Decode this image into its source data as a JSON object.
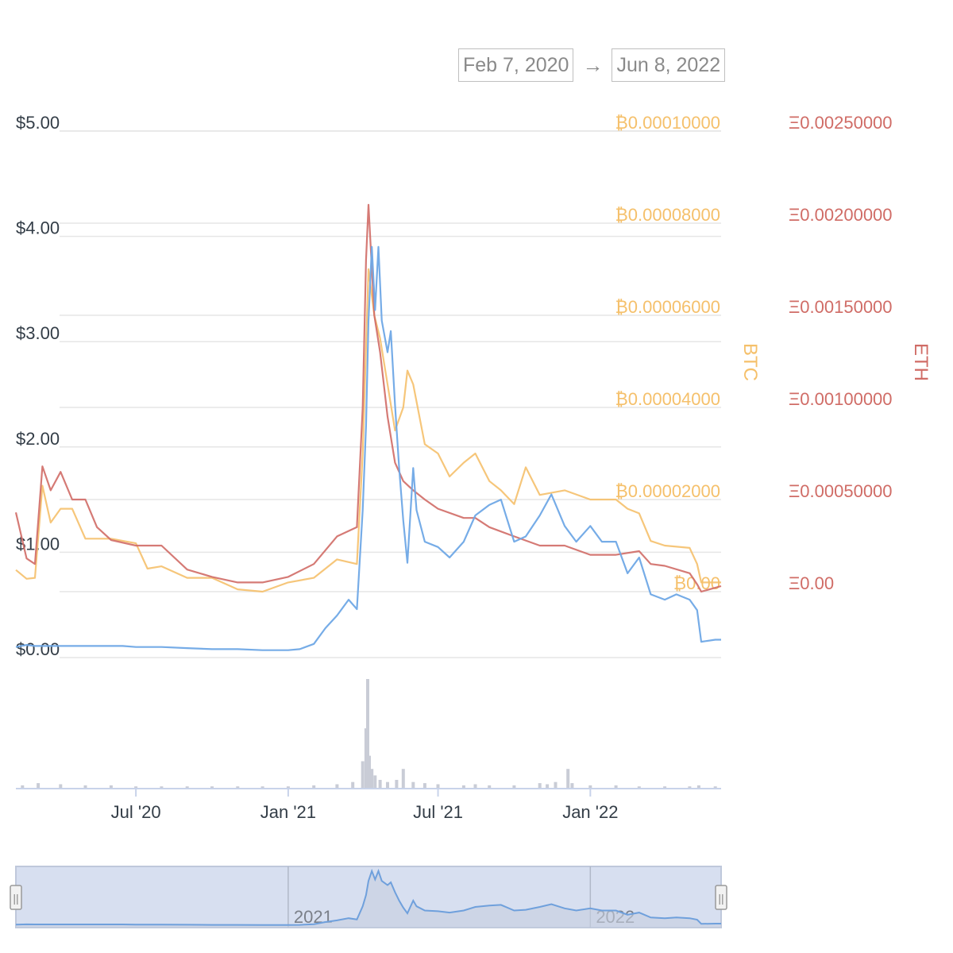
{
  "range_selector": {
    "from": "Feb 7, 2020",
    "arrow": "→",
    "to": "Jun 8, 2022"
  },
  "colors": {
    "usd": "#6fa8e6",
    "btc": "#f5c06b",
    "eth": "#d06c66",
    "grid": "#e6e6e6",
    "volume": "#c9ccd6",
    "navigator_fill": "#d7dff0",
    "navigator_line": "#6fa0dc"
  },
  "chart_data": {
    "type": "line",
    "title": "",
    "x_range": [
      "2020-02-07",
      "2022-06-08"
    ],
    "x_ticks": [
      {
        "date": "2020-07-01",
        "label": "Jul '20"
      },
      {
        "date": "2021-01-01",
        "label": "Jan '21"
      },
      {
        "date": "2021-07-01",
        "label": "Jul '21"
      },
      {
        "date": "2022-01-01",
        "label": "Jan '22"
      }
    ],
    "y_axes": {
      "usd": {
        "range": [
          0,
          5
        ],
        "ticks": [
          "$0.00",
          "$1.00",
          "$2.00",
          "$3.00",
          "$4.00",
          "$5.00"
        ],
        "label": ""
      },
      "btc": {
        "range": [
          0,
          0.0001
        ],
        "ticks": [
          "₿0.00",
          "₿0.00002000",
          "₿0.00004000",
          "₿0.00006000",
          "₿0.00008000",
          "₿0.00010000"
        ],
        "label": "BTC"
      },
      "eth": {
        "range": [
          0,
          0.0025
        ],
        "ticks": [
          "Ξ0.00",
          "Ξ0.00050000",
          "Ξ0.00100000",
          "Ξ0.00150000",
          "Ξ0.00200000",
          "Ξ0.00250000"
        ],
        "label": "ETH"
      }
    },
    "series": [
      {
        "key": "usd",
        "axis": "usd",
        "values": [
          [
            "2020-02-07",
            0.1
          ],
          [
            "2020-02-20",
            0.12
          ],
          [
            "2020-03-01",
            0.11
          ],
          [
            "2020-04-01",
            0.11
          ],
          [
            "2020-05-01",
            0.11
          ],
          [
            "2020-06-01",
            0.11
          ],
          [
            "2020-06-15",
            0.11
          ],
          [
            "2020-07-01",
            0.1
          ],
          [
            "2020-08-01",
            0.1
          ],
          [
            "2020-09-01",
            0.09
          ],
          [
            "2020-10-01",
            0.08
          ],
          [
            "2020-11-01",
            0.08
          ],
          [
            "2020-12-01",
            0.07
          ],
          [
            "2021-01-01",
            0.07
          ],
          [
            "2021-01-15",
            0.08
          ],
          [
            "2021-02-01",
            0.13
          ],
          [
            "2021-02-15",
            0.28
          ],
          [
            "2021-03-01",
            0.4
          ],
          [
            "2021-03-15",
            0.55
          ],
          [
            "2021-03-25",
            0.46
          ],
          [
            "2021-04-01",
            1.4
          ],
          [
            "2021-04-05",
            2.2
          ],
          [
            "2021-04-08",
            3.2
          ],
          [
            "2021-04-12",
            3.9
          ],
          [
            "2021-04-16",
            3.3
          ],
          [
            "2021-04-20",
            3.9
          ],
          [
            "2021-04-24",
            3.2
          ],
          [
            "2021-05-01",
            2.9
          ],
          [
            "2021-05-05",
            3.1
          ],
          [
            "2021-05-10",
            2.4
          ],
          [
            "2021-05-15",
            1.8
          ],
          [
            "2021-05-20",
            1.3
          ],
          [
            "2021-05-25",
            0.9
          ],
          [
            "2021-06-01",
            1.8
          ],
          [
            "2021-06-05",
            1.4
          ],
          [
            "2021-06-15",
            1.1
          ],
          [
            "2021-07-01",
            1.05
          ],
          [
            "2021-07-15",
            0.95
          ],
          [
            "2021-08-01",
            1.1
          ],
          [
            "2021-08-15",
            1.35
          ],
          [
            "2021-09-01",
            1.45
          ],
          [
            "2021-09-15",
            1.5
          ],
          [
            "2021-10-01",
            1.1
          ],
          [
            "2021-10-15",
            1.15
          ],
          [
            "2021-11-01",
            1.35
          ],
          [
            "2021-11-15",
            1.55
          ],
          [
            "2021-12-01",
            1.25
          ],
          [
            "2021-12-15",
            1.1
          ],
          [
            "2022-01-01",
            1.25
          ],
          [
            "2022-01-15",
            1.1
          ],
          [
            "2022-02-01",
            1.1
          ],
          [
            "2022-02-15",
            0.8
          ],
          [
            "2022-03-01",
            0.95
          ],
          [
            "2022-03-15",
            0.6
          ],
          [
            "2022-04-01",
            0.55
          ],
          [
            "2022-04-15",
            0.6
          ],
          [
            "2022-05-01",
            0.55
          ],
          [
            "2022-05-10",
            0.45
          ],
          [
            "2022-05-15",
            0.15
          ],
          [
            "2022-06-01",
            0.17
          ],
          [
            "2022-06-08",
            0.17
          ]
        ]
      },
      {
        "key": "btc",
        "axis": "btc",
        "values": [
          [
            "2020-02-07",
            4.7e-06
          ],
          [
            "2020-02-20",
            2.8e-06
          ],
          [
            "2020-03-01",
            3e-06
          ],
          [
            "2020-03-10",
            2.3e-05
          ],
          [
            "2020-03-20",
            1.5e-05
          ],
          [
            "2020-04-01",
            1.8e-05
          ],
          [
            "2020-04-15",
            1.8e-05
          ],
          [
            "2020-05-01",
            1.15e-05
          ],
          [
            "2020-06-01",
            1.15e-05
          ],
          [
            "2020-07-01",
            1.05e-05
          ],
          [
            "2020-07-15",
            5e-06
          ],
          [
            "2020-08-01",
            5.5e-06
          ],
          [
            "2020-09-01",
            3e-06
          ],
          [
            "2020-10-01",
            3e-06
          ],
          [
            "2020-11-01",
            5e-07
          ],
          [
            "2020-12-01",
            0.0
          ],
          [
            "2021-01-01",
            2e-06
          ],
          [
            "2021-02-01",
            3e-06
          ],
          [
            "2021-03-01",
            7e-06
          ],
          [
            "2021-03-25",
            6e-06
          ],
          [
            "2021-04-01",
            3e-05
          ],
          [
            "2021-04-08",
            7e-05
          ],
          [
            "2021-04-15",
            6e-05
          ],
          [
            "2021-04-22",
            5.5e-05
          ],
          [
            "2021-05-01",
            4.5e-05
          ],
          [
            "2021-05-10",
            3.5e-05
          ],
          [
            "2021-05-20",
            4e-05
          ],
          [
            "2021-05-25",
            4.8e-05
          ],
          [
            "2021-06-01",
            4.5e-05
          ],
          [
            "2021-06-15",
            3.2e-05
          ],
          [
            "2021-07-01",
            3e-05
          ],
          [
            "2021-07-15",
            2.5e-05
          ],
          [
            "2021-08-01",
            2.8e-05
          ],
          [
            "2021-08-15",
            3e-05
          ],
          [
            "2021-09-01",
            2.4e-05
          ],
          [
            "2021-09-15",
            2.2e-05
          ],
          [
            "2021-10-01",
            1.9e-05
          ],
          [
            "2021-10-15",
            2.7e-05
          ],
          [
            "2021-11-01",
            2.1e-05
          ],
          [
            "2021-12-01",
            2.2e-05
          ],
          [
            "2022-01-01",
            2e-05
          ],
          [
            "2022-02-01",
            2e-05
          ],
          [
            "2022-02-15",
            1.8e-05
          ],
          [
            "2022-03-01",
            1.7e-05
          ],
          [
            "2022-03-15",
            1.1e-05
          ],
          [
            "2022-04-01",
            1e-05
          ],
          [
            "2022-05-01",
            9.5e-06
          ],
          [
            "2022-05-10",
            6e-06
          ],
          [
            "2022-05-15",
            2e-06
          ],
          [
            "2022-06-08",
            2e-06
          ]
        ]
      },
      {
        "key": "eth",
        "axis": "eth",
        "values": [
          [
            "2020-02-07",
            0.00043
          ],
          [
            "2020-02-20",
            0.00018
          ],
          [
            "2020-03-01",
            0.00015
          ],
          [
            "2020-03-10",
            0.00068
          ],
          [
            "2020-03-20",
            0.00055
          ],
          [
            "2020-04-01",
            0.00065
          ],
          [
            "2020-04-15",
            0.0005
          ],
          [
            "2020-05-01",
            0.0005
          ],
          [
            "2020-05-15",
            0.00035
          ],
          [
            "2020-06-01",
            0.00028
          ],
          [
            "2020-07-01",
            0.00025
          ],
          [
            "2020-08-01",
            0.00025
          ],
          [
            "2020-09-01",
            0.00012
          ],
          [
            "2020-10-01",
            8e-05
          ],
          [
            "2020-11-01",
            5e-05
          ],
          [
            "2020-12-01",
            5e-05
          ],
          [
            "2021-01-01",
            8e-05
          ],
          [
            "2021-02-01",
            0.00015
          ],
          [
            "2021-03-01",
            0.0003
          ],
          [
            "2021-03-25",
            0.00035
          ],
          [
            "2021-04-01",
            0.001
          ],
          [
            "2021-04-05",
            0.0018
          ],
          [
            "2021-04-08",
            0.0021
          ],
          [
            "2021-04-15",
            0.0015
          ],
          [
            "2021-04-22",
            0.0013
          ],
          [
            "2021-05-01",
            0.00095
          ],
          [
            "2021-05-10",
            0.0007
          ],
          [
            "2021-05-20",
            0.0006
          ],
          [
            "2021-06-01",
            0.00055
          ],
          [
            "2021-06-15",
            0.0005
          ],
          [
            "2021-07-01",
            0.00045
          ],
          [
            "2021-08-01",
            0.0004
          ],
          [
            "2021-08-15",
            0.0004
          ],
          [
            "2021-09-01",
            0.00035
          ],
          [
            "2021-10-01",
            0.0003
          ],
          [
            "2021-11-01",
            0.00025
          ],
          [
            "2021-12-01",
            0.00025
          ],
          [
            "2022-01-01",
            0.0002
          ],
          [
            "2022-02-01",
            0.0002
          ],
          [
            "2022-03-01",
            0.00022
          ],
          [
            "2022-03-15",
            0.00015
          ],
          [
            "2022-04-01",
            0.00014
          ],
          [
            "2022-05-01",
            0.0001
          ],
          [
            "2022-05-10",
            4e-05
          ],
          [
            "2022-05-15",
            0.0
          ],
          [
            "2022-06-08",
            3e-05
          ]
        ]
      }
    ],
    "volume": {
      "note_axis": "unlabeled",
      "values": [
        [
          "2020-02-15",
          3
        ],
        [
          "2020-03-05",
          5
        ],
        [
          "2020-04-01",
          4
        ],
        [
          "2020-05-01",
          3
        ],
        [
          "2020-06-01",
          3
        ],
        [
          "2020-07-01",
          2
        ],
        [
          "2020-08-01",
          2
        ],
        [
          "2020-09-01",
          2
        ],
        [
          "2020-10-01",
          2
        ],
        [
          "2020-11-01",
          2
        ],
        [
          "2020-12-01",
          2
        ],
        [
          "2021-01-01",
          2
        ],
        [
          "2021-02-01",
          3
        ],
        [
          "2021-03-01",
          4
        ],
        [
          "2021-03-20",
          6
        ],
        [
          "2021-04-01",
          25
        ],
        [
          "2021-04-05",
          55
        ],
        [
          "2021-04-07",
          100
        ],
        [
          "2021-04-09",
          30
        ],
        [
          "2021-04-12",
          18
        ],
        [
          "2021-04-16",
          12
        ],
        [
          "2021-04-22",
          8
        ],
        [
          "2021-05-01",
          6
        ],
        [
          "2021-05-12",
          8
        ],
        [
          "2021-05-20",
          18
        ],
        [
          "2021-06-01",
          6
        ],
        [
          "2021-06-15",
          5
        ],
        [
          "2021-07-01",
          4
        ],
        [
          "2021-08-01",
          3
        ],
        [
          "2021-08-15",
          4
        ],
        [
          "2021-09-01",
          3
        ],
        [
          "2021-10-01",
          3
        ],
        [
          "2021-11-01",
          5
        ],
        [
          "2021-11-10",
          4
        ],
        [
          "2021-11-20",
          6
        ],
        [
          "2021-12-05",
          18
        ],
        [
          "2021-12-10",
          5
        ],
        [
          "2022-01-01",
          3
        ],
        [
          "2022-02-01",
          3
        ],
        [
          "2022-03-01",
          2
        ],
        [
          "2022-04-01",
          2
        ],
        [
          "2022-05-01",
          2
        ],
        [
          "2022-05-12",
          3
        ],
        [
          "2022-06-01",
          2
        ]
      ]
    },
    "navigator": {
      "year_labels": [
        {
          "date": "2021-01-01",
          "label": "2021"
        },
        {
          "date": "2022-01-01",
          "label": "2022"
        }
      ],
      "handle_glyph": "||"
    }
  }
}
